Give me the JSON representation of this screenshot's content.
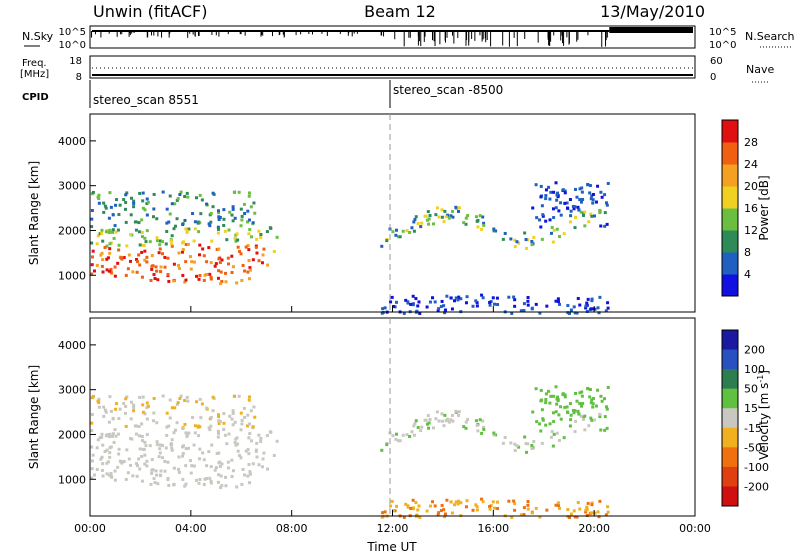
{
  "header": {
    "station": "Unwin (fitACF)",
    "beam": "Beam 12",
    "date": "13/May/2010"
  },
  "strips": {
    "nsky_label": "N.Sky",
    "nsky_ticks": [
      "10^5",
      "10^0"
    ],
    "nsearch_label": "N.Search",
    "nsearch_ticks": [
      "10^5",
      "10^0"
    ],
    "freq_label": "Freq.",
    "freq_unit": "[MHz]",
    "freq_ticks": [
      "18",
      "8"
    ],
    "nave_label": "Nave",
    "nave_ticks": [
      "60",
      "0"
    ],
    "cpid_label": "CPID",
    "cpid_segments": [
      {
        "label": "stereo_scan 8551",
        "start_hour": 0
      },
      {
        "label": "stereo_scan -8500",
        "start_hour": 12
      }
    ]
  },
  "chart_data": [
    {
      "type": "heatmap",
      "quantity": "power",
      "xlabel": "",
      "ylabel": "Slant Range [km]",
      "xlim": [
        0,
        24
      ],
      "ylim": [
        180,
        4600
      ],
      "yticks": [
        "1000",
        "2000",
        "3000",
        "4000"
      ],
      "colorbar": {
        "label": "Power [dB]",
        "ticks": [
          "4",
          "8",
          "12",
          "16",
          "20",
          "24",
          "28"
        ],
        "colors": [
          "#1010e0",
          "#2060c0",
          "#2e8b57",
          "#6abf40",
          "#f0d020",
          "#f4a020",
          "#f06010",
          "#e01010"
        ]
      }
    },
    {
      "type": "heatmap",
      "quantity": "velocity",
      "xlabel": "Time UT",
      "ylabel": "Slant Range [km]",
      "xlim": [
        0,
        24
      ],
      "ylim": [
        180,
        4600
      ],
      "yticks": [
        "1000",
        "2000",
        "3000",
        "4000"
      ],
      "xticks": [
        "00:00",
        "04:00",
        "08:00",
        "12:00",
        "16:00",
        "20:00",
        "00:00"
      ],
      "colorbar": {
        "label": "Velocity [m s",
        "label_sup": "-1",
        "label_end": "]",
        "ticks": [
          "200",
          "100",
          "50",
          "15",
          "-15",
          "-50",
          "-100",
          "-200"
        ],
        "colors": [
          "#1a1aa0",
          "#2850c0",
          "#2e7d50",
          "#60c040",
          "#c8c8c0",
          "#f0b020",
          "#f07010",
          "#e04010",
          "#d01010"
        ]
      }
    }
  ]
}
